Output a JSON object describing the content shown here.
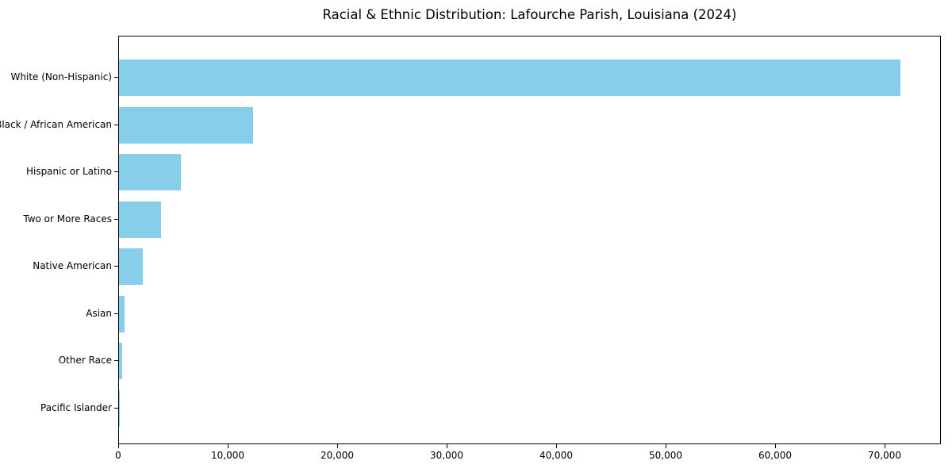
{
  "chart_data": {
    "type": "bar",
    "orientation": "horizontal",
    "title": "Racial & Ethnic Distribution: Lafourche Parish, Louisiana (2024)",
    "categories": [
      "White (Non-Hispanic)",
      "Black / African American",
      "Hispanic or Latino",
      "Two or More Races",
      "Native American",
      "Asian",
      "Other Race",
      "Pacific Islander"
    ],
    "values": [
      71400,
      12240,
      5620,
      3810,
      2170,
      540,
      280,
      30
    ],
    "xlabel": "",
    "ylabel": "",
    "xlim": [
      0,
      75000
    ],
    "x_ticks": [
      0,
      10000,
      20000,
      30000,
      40000,
      50000,
      60000,
      70000
    ],
    "x_tick_labels": [
      "0",
      "10,000",
      "20,000",
      "30,000",
      "40,000",
      "50,000",
      "60,000",
      "70,000"
    ],
    "bar_color": "#87CEEB",
    "axis_color": "#000000",
    "background_color": "#ffffff",
    "grid": false,
    "legend": null
  }
}
